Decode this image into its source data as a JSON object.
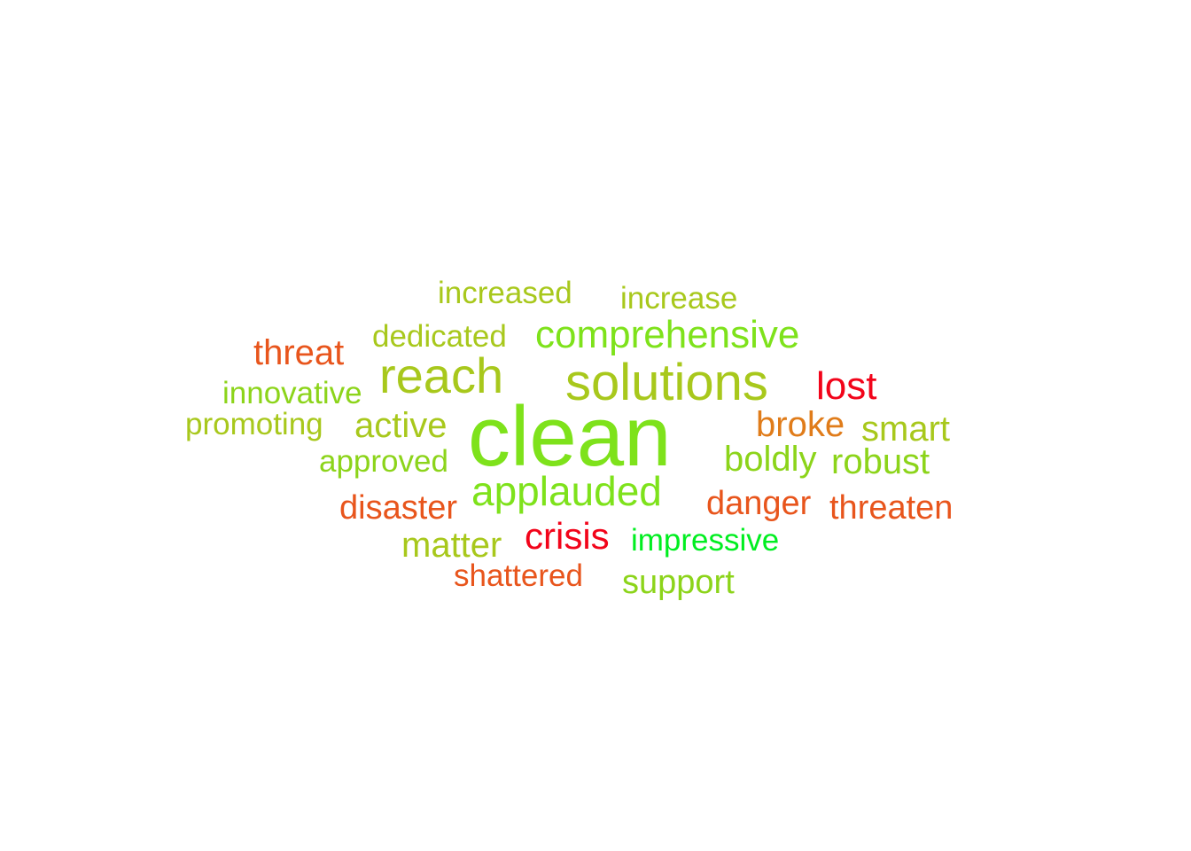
{
  "words": [
    {
      "text": "clean",
      "color": "#7ee21b"
    },
    {
      "text": "solutions",
      "color": "#a8c81c"
    },
    {
      "text": "reach",
      "color": "#a8c81c"
    },
    {
      "text": "applauded",
      "color": "#7ee21b"
    },
    {
      "text": "comprehensive",
      "color": "#7ee21b"
    },
    {
      "text": "lost",
      "color": "#f2041a"
    },
    {
      "text": "crisis",
      "color": "#f2041a"
    },
    {
      "text": "threat",
      "color": "#e8551c"
    },
    {
      "text": "increased",
      "color": "#a8c81c"
    },
    {
      "text": "increase",
      "color": "#a8c81c"
    },
    {
      "text": "dedicated",
      "color": "#a8c81c"
    },
    {
      "text": "innovative",
      "color": "#8cd41a"
    },
    {
      "text": "promoting",
      "color": "#a8c81c"
    },
    {
      "text": "active",
      "color": "#a8c81c"
    },
    {
      "text": "broke",
      "color": "#e07c1a"
    },
    {
      "text": "smart",
      "color": "#a8c81c"
    },
    {
      "text": "approved",
      "color": "#8cd41a"
    },
    {
      "text": "boldly",
      "color": "#8cd41a"
    },
    {
      "text": "robust",
      "color": "#8cd41a"
    },
    {
      "text": "disaster",
      "color": "#e8551c"
    },
    {
      "text": "danger",
      "color": "#e8551c"
    },
    {
      "text": "threaten",
      "color": "#e8551c"
    },
    {
      "text": "matter",
      "color": "#a8c81c"
    },
    {
      "text": "impressive",
      "color": "#00ee20"
    },
    {
      "text": "shattered",
      "color": "#e8551c"
    },
    {
      "text": "support",
      "color": "#8cd41a"
    }
  ]
}
